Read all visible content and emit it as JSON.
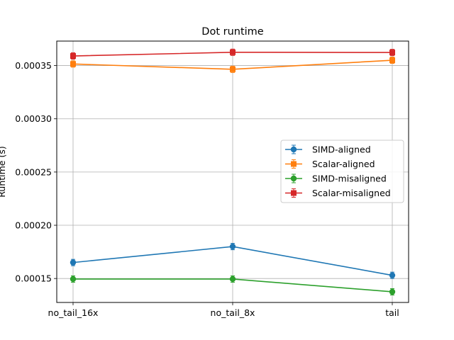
{
  "chart_data": {
    "type": "line",
    "title": "Dot runtime",
    "xlabel": "",
    "ylabel": "Runtime (s)",
    "categories": [
      "no_tail_16x",
      "no_tail_8x",
      "tail"
    ],
    "ylim": [
      0.0001275,
      0.000373
    ],
    "yticks": [
      "0.00015",
      "0.00020",
      "0.00025",
      "0.00030",
      "0.00035"
    ],
    "grid": true,
    "legend_position": "center-right",
    "series": [
      {
        "name": "SIMD-aligned",
        "color": "#1f77b4",
        "marker": "circle",
        "values": [
          0.000165,
          0.00018,
          0.000153
        ]
      },
      {
        "name": "Scalar-aligned",
        "color": "#ff7f0e",
        "marker": "square",
        "values": [
          0.0003515,
          0.0003465,
          0.000355
        ]
      },
      {
        "name": "SIMD-misaligned",
        "color": "#2ca02c",
        "marker": "circle",
        "values": [
          0.0001495,
          0.0001495,
          0.0001375
        ]
      },
      {
        "name": "Scalar-misaligned",
        "color": "#d62728",
        "marker": "square",
        "values": [
          0.000359,
          0.0003625,
          0.0003623
        ]
      }
    ]
  }
}
